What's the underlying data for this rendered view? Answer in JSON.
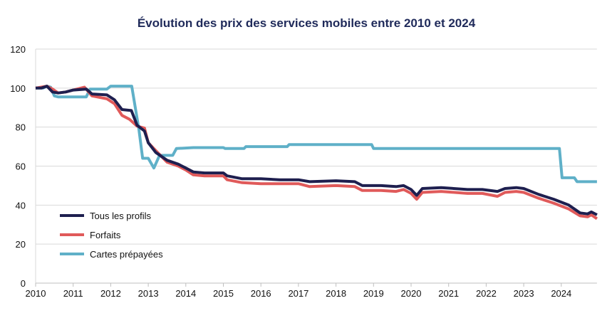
{
  "chart_data": {
    "type": "line",
    "title": "Évolution des prix des services mobiles entre 2010 et 2024",
    "xlim": [
      2010,
      2024.95
    ],
    "ylim": [
      0,
      120
    ],
    "xticks": [
      2010,
      2011,
      2012,
      2013,
      2014,
      2015,
      2016,
      2017,
      2018,
      2019,
      2020,
      2021,
      2022,
      2023,
      2024
    ],
    "yticks": [
      0,
      20,
      40,
      60,
      80,
      100,
      120
    ],
    "grid": "horizontal",
    "legend": "bottom-left",
    "series": [
      {
        "name": "Tous les profils",
        "color": "#1e1f4f",
        "points": [
          [
            2010,
            100
          ],
          [
            2010.15,
            100
          ],
          [
            2010.3,
            101
          ],
          [
            2010.45,
            98
          ],
          [
            2010.6,
            97.5
          ],
          [
            2010.8,
            98
          ],
          [
            2011,
            99
          ],
          [
            2011.35,
            99.5
          ],
          [
            2011.5,
            97
          ],
          [
            2011.9,
            96.5
          ],
          [
            2012.1,
            94
          ],
          [
            2012.3,
            89
          ],
          [
            2012.55,
            88.5
          ],
          [
            2012.7,
            81
          ],
          [
            2012.9,
            78
          ],
          [
            2013,
            72
          ],
          [
            2013.2,
            67
          ],
          [
            2013.5,
            63
          ],
          [
            2013.8,
            61
          ],
          [
            2014,
            59
          ],
          [
            2014.2,
            57
          ],
          [
            2014.5,
            56.5
          ],
          [
            2015,
            56.5
          ],
          [
            2015.1,
            55
          ],
          [
            2015.5,
            53.5
          ],
          [
            2016,
            53.5
          ],
          [
            2016.5,
            53
          ],
          [
            2017,
            53
          ],
          [
            2017.3,
            52
          ],
          [
            2018,
            52.5
          ],
          [
            2018.5,
            52
          ],
          [
            2018.7,
            50
          ],
          [
            2019.2,
            50
          ],
          [
            2019.6,
            49.5
          ],
          [
            2019.8,
            50
          ],
          [
            2020,
            48
          ],
          [
            2020.15,
            45
          ],
          [
            2020.3,
            48.5
          ],
          [
            2020.8,
            49
          ],
          [
            2021.5,
            48
          ],
          [
            2021.9,
            48
          ],
          [
            2022.3,
            47
          ],
          [
            2022.5,
            48.5
          ],
          [
            2022.8,
            49
          ],
          [
            2023,
            48.5
          ],
          [
            2023.4,
            45.5
          ],
          [
            2023.8,
            43
          ],
          [
            2024.2,
            40
          ],
          [
            2024.5,
            36
          ],
          [
            2024.7,
            35.5
          ],
          [
            2024.8,
            36.5
          ],
          [
            2024.95,
            35
          ]
        ]
      },
      {
        "name": "Forfaits",
        "color": "#e05a5a",
        "points": [
          [
            2010,
            100
          ],
          [
            2010.3,
            101
          ],
          [
            2010.45,
            99.5
          ],
          [
            2010.6,
            97.5
          ],
          [
            2010.8,
            98
          ],
          [
            2011,
            99
          ],
          [
            2011.3,
            100.5
          ],
          [
            2011.5,
            96
          ],
          [
            2011.9,
            94.5
          ],
          [
            2012.1,
            92
          ],
          [
            2012.3,
            86
          ],
          [
            2012.5,
            84
          ],
          [
            2012.7,
            80.5
          ],
          [
            2012.9,
            79.5
          ],
          [
            2013,
            72
          ],
          [
            2013.2,
            68
          ],
          [
            2013.5,
            62
          ],
          [
            2013.8,
            60
          ],
          [
            2014,
            58
          ],
          [
            2014.2,
            55.5
          ],
          [
            2014.5,
            55
          ],
          [
            2015,
            55
          ],
          [
            2015.1,
            53
          ],
          [
            2015.5,
            51.5
          ],
          [
            2016,
            51
          ],
          [
            2016.5,
            51
          ],
          [
            2017,
            51
          ],
          [
            2017.3,
            49.5
          ],
          [
            2018,
            50
          ],
          [
            2018.5,
            49.5
          ],
          [
            2018.7,
            47.5
          ],
          [
            2019.2,
            47.5
          ],
          [
            2019.6,
            47
          ],
          [
            2019.8,
            48
          ],
          [
            2020,
            46
          ],
          [
            2020.15,
            43
          ],
          [
            2020.3,
            46.5
          ],
          [
            2020.8,
            47
          ],
          [
            2021.5,
            46
          ],
          [
            2021.9,
            46
          ],
          [
            2022.3,
            44.5
          ],
          [
            2022.5,
            46.5
          ],
          [
            2022.8,
            47
          ],
          [
            2023,
            46.5
          ],
          [
            2023.4,
            43.5
          ],
          [
            2023.8,
            41
          ],
          [
            2024.2,
            38
          ],
          [
            2024.5,
            34.5
          ],
          [
            2024.7,
            34
          ],
          [
            2024.8,
            35
          ],
          [
            2024.95,
            33
          ]
        ]
      },
      {
        "name": "Cartes prépayées",
        "color": "#5fb0c8",
        "points": [
          [
            2010,
            100
          ],
          [
            2010.2,
            100
          ],
          [
            2010.3,
            101
          ],
          [
            2010.4,
            100.5
          ],
          [
            2010.5,
            96
          ],
          [
            2010.6,
            95.5
          ],
          [
            2011.35,
            95.5
          ],
          [
            2011.45,
            99.5
          ],
          [
            2011.9,
            99.5
          ],
          [
            2012,
            101
          ],
          [
            2012.56,
            101
          ],
          [
            2012.75,
            79
          ],
          [
            2012.85,
            64
          ],
          [
            2013,
            64
          ],
          [
            2013.15,
            59
          ],
          [
            2013.3,
            65.5
          ],
          [
            2013.65,
            65.5
          ],
          [
            2013.75,
            69
          ],
          [
            2014.2,
            69.5
          ],
          [
            2015,
            69.5
          ],
          [
            2015.05,
            69
          ],
          [
            2015.55,
            69
          ],
          [
            2015.6,
            70
          ],
          [
            2016.7,
            70
          ],
          [
            2016.75,
            71
          ],
          [
            2018.95,
            71
          ],
          [
            2019,
            69
          ],
          [
            2023.95,
            69
          ],
          [
            2024.02,
            54
          ],
          [
            2024.35,
            54
          ],
          [
            2024.42,
            52
          ],
          [
            2024.95,
            52
          ]
        ]
      }
    ]
  }
}
